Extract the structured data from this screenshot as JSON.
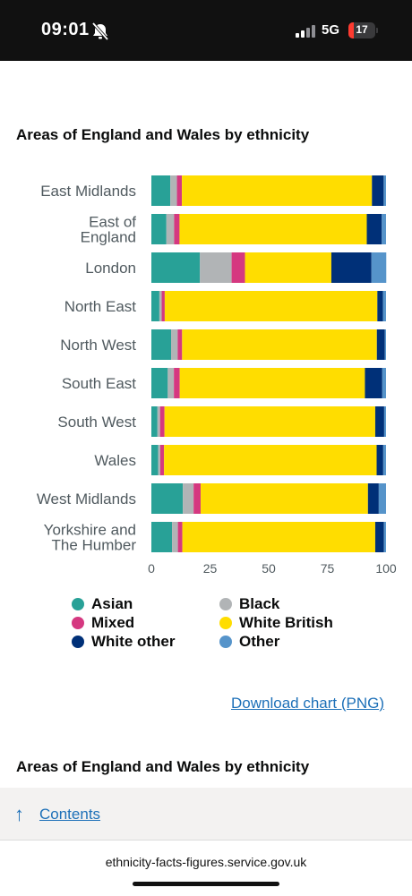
{
  "status": {
    "time": "09:01",
    "network": "5G",
    "battery": "17"
  },
  "chart_heading": "Areas of England and Wales by ethnicity",
  "chart_data": {
    "type": "bar",
    "orientation": "horizontal",
    "stacked": true,
    "categories": [
      [
        "East Midlands"
      ],
      [
        "East of",
        "England"
      ],
      [
        "London"
      ],
      [
        "North East"
      ],
      [
        "North West"
      ],
      [
        "South East"
      ],
      [
        "South West"
      ],
      [
        "Wales"
      ],
      [
        "West Midlands"
      ],
      [
        "Yorkshire and",
        "The Humber"
      ]
    ],
    "series": [
      {
        "name": "Asian",
        "color": "#28a197",
        "values": [
          8.1,
          6.4,
          20.7,
          3.4,
          8.4,
          7.0,
          2.6,
          2.9,
          13.4,
          8.8
        ]
      },
      {
        "name": "Black",
        "color": "#b1b4b6",
        "values": [
          2.8,
          3.3,
          13.5,
          1.0,
          2.8,
          2.6,
          1.1,
          0.9,
          4.6,
          2.5
        ]
      },
      {
        "name": "Mixed",
        "color": "#d53880",
        "values": [
          2.1,
          2.3,
          5.7,
          1.3,
          1.9,
          2.5,
          1.9,
          1.6,
          3.0,
          1.9
        ]
      },
      {
        "name": "White British",
        "color": "#ffdd00",
        "values": [
          81.0,
          79.8,
          36.8,
          90.6,
          83.0,
          78.9,
          89.8,
          90.6,
          71.3,
          82.2
        ]
      },
      {
        "name": "White other",
        "color": "#003078",
        "values": [
          5.0,
          6.4,
          17.1,
          2.4,
          3.4,
          7.4,
          3.8,
          2.8,
          4.6,
          3.7
        ]
      },
      {
        "name": "Other",
        "color": "#5694ca",
        "values": [
          1.0,
          1.8,
          6.3,
          1.3,
          0.5,
          1.6,
          0.8,
          1.2,
          3.1,
          0.9
        ]
      }
    ],
    "xticks": [
      "0",
      "25",
      "50",
      "75",
      "100"
    ],
    "xlim": [
      0,
      100
    ],
    "grid": false,
    "legend_position": "bottom"
  },
  "download_link": "Download chart (PNG)",
  "next_heading": "Areas of England and Wales by ethnicity",
  "contents_link": "Contents",
  "url": "ethnicity-facts-figures.service.gov.uk"
}
